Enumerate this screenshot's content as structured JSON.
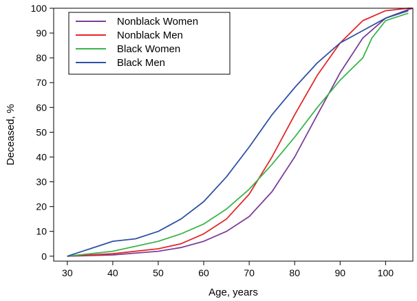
{
  "chart_data": {
    "type": "line",
    "xlabel": "Age, years",
    "ylabel": "Deceased, %",
    "xlim": [
      27,
      106
    ],
    "ylim": [
      -2,
      100
    ],
    "xticks": [
      30,
      40,
      50,
      60,
      70,
      80,
      90,
      100
    ],
    "yticks": [
      0,
      10,
      20,
      30,
      40,
      50,
      60,
      70,
      80,
      90,
      100
    ],
    "grid": false,
    "legend_position": "top-left",
    "series": [
      {
        "name": "Nonblack Women",
        "color": "#7d3c98",
        "x": [
          30,
          40,
          50,
          55,
          60,
          65,
          70,
          75,
          80,
          85,
          90,
          95,
          100,
          105,
          106
        ],
        "y": [
          0,
          0.5,
          2,
          3.5,
          6,
          10,
          16,
          26,
          40,
          57,
          74,
          88,
          96,
          99.5,
          100
        ]
      },
      {
        "name": "Nonblack Men",
        "color": "#e32626",
        "x": [
          30,
          40,
          50,
          55,
          60,
          65,
          70,
          75,
          80,
          85,
          90,
          95,
          100,
          105,
          106
        ],
        "y": [
          0,
          1,
          3,
          5,
          9,
          15,
          25,
          40,
          57,
          73,
          86,
          95,
          99,
          100,
          100
        ]
      },
      {
        "name": "Black Women",
        "color": "#39b54a",
        "x": [
          30,
          40,
          50,
          55,
          60,
          65,
          70,
          75,
          80,
          85,
          90,
          95,
          97,
          100,
          105
        ],
        "y": [
          0,
          2,
          6,
          9,
          13,
          19,
          27,
          37,
          48,
          60,
          71,
          80,
          88,
          95,
          98
        ]
      },
      {
        "name": "Black Men",
        "color": "#2e4fa3",
        "x": [
          30,
          35,
          40,
          45,
          50,
          55,
          60,
          65,
          70,
          75,
          80,
          85,
          90,
          95,
          100,
          105
        ],
        "y": [
          0,
          3,
          6,
          7,
          10,
          15,
          22,
          32,
          44,
          57,
          68,
          78,
          86,
          91,
          96,
          99
        ]
      }
    ]
  }
}
